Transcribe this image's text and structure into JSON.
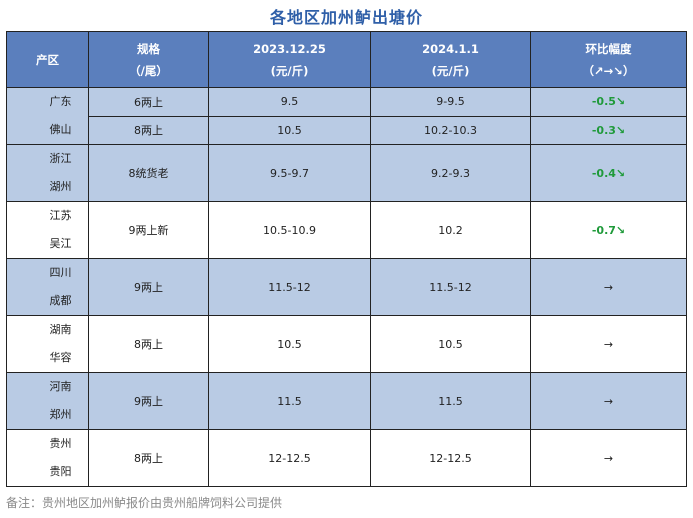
{
  "title": "各地区加州鲈出塘价",
  "header": {
    "region": "产区",
    "spec_line1": "规格",
    "spec_line2": "（/尾）",
    "date1_line1": "2023.12.25",
    "date1_line2": "(元/斤)",
    "date2_line1": "2024.1.1",
    "date2_line2": "(元/斤)",
    "change_line1": "环比幅度",
    "change_line2": "（↗→↘）"
  },
  "rows": [
    {
      "region_line1": "广东",
      "region_line2": "佛山",
      "sub": [
        {
          "spec": "6两上",
          "price1": "9.5",
          "price2": "9-9.5",
          "change": "-0.5↘"
        },
        {
          "spec": "8两上",
          "price1": "10.5",
          "price2": "10.2-10.3",
          "change": "-0.3↘"
        }
      ]
    },
    {
      "region_line1": "浙江",
      "region_line2": "湖州",
      "spec": "8统货老",
      "price1": "9.5-9.7",
      "price2": "9.2-9.3",
      "change": "-0.4↘"
    },
    {
      "region_line1": "江苏",
      "region_line2": "吴江",
      "spec": "9两上新",
      "price1": "10.5-10.9",
      "price2": "10.2",
      "change": "-0.7↘"
    },
    {
      "region_line1": "四川",
      "region_line2": "成都",
      "spec": "9两上",
      "price1": "11.5-12",
      "price2": "11.5-12",
      "change": "→"
    },
    {
      "region_line1": "湖南",
      "region_line2": "华容",
      "spec": "8两上",
      "price1": "10.5",
      "price2": "10.5",
      "change": "→"
    },
    {
      "region_line1": "河南",
      "region_line2": "郑州",
      "spec": "9两上",
      "price1": "11.5",
      "price2": "11.5",
      "change": "→"
    },
    {
      "region_line1": "贵州",
      "region_line2": "贵阳",
      "spec": "8两上",
      "price1": "12-12.5",
      "price2": "12-12.5",
      "change": "→"
    }
  ],
  "note": "备注：贵州地区加州鲈报价由贵州船牌饲料公司提供",
  "colors": {
    "header": "#5b7fbd",
    "band": "#b9cbe4",
    "title": "#2f5fa8",
    "down": "#1f9a3a"
  }
}
